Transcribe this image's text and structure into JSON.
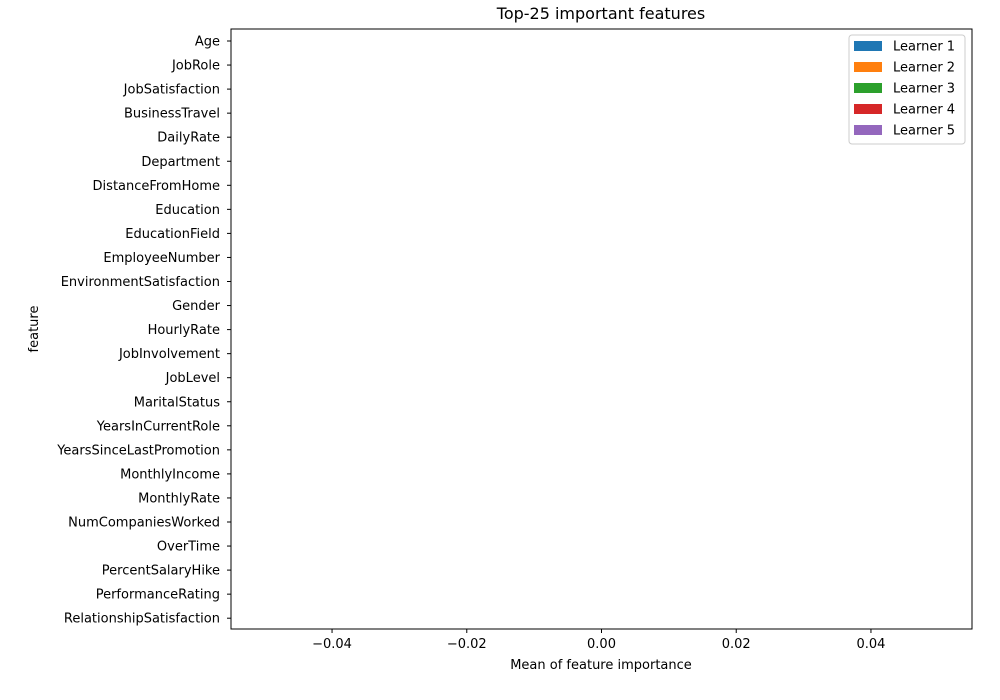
{
  "chart_data": {
    "type": "bar",
    "orientation": "horizontal",
    "title": "Top-25 important features",
    "xlabel": "Mean of feature importance",
    "ylabel": "feature",
    "xlim": [
      -0.055,
      0.055
    ],
    "xticks": [
      -0.04,
      -0.02,
      0.0,
      0.02,
      0.04
    ],
    "xtick_labels": [
      "−0.04",
      "−0.02",
      "0.00",
      "0.02",
      "0.04"
    ],
    "grid": false,
    "legend_position": "top-right",
    "categories": [
      "Age",
      "JobRole",
      "JobSatisfaction",
      "BusinessTravel",
      "DailyRate",
      "Department",
      "DistanceFromHome",
      "Education",
      "EducationField",
      "EmployeeNumber",
      "EnvironmentSatisfaction",
      "Gender",
      "HourlyRate",
      "JobInvolvement",
      "JobLevel",
      "MaritalStatus",
      "YearsInCurrentRole",
      "YearsSinceLastPromotion",
      "MonthlyIncome",
      "MonthlyRate",
      "NumCompaniesWorked",
      "OverTime",
      "PercentSalaryHike",
      "PerformanceRating",
      "RelationshipSatisfaction"
    ],
    "series": [
      {
        "name": "Learner 1",
        "color": "#1f77b4",
        "values": [
          0,
          0,
          0,
          0,
          0,
          0,
          0,
          0,
          0,
          0,
          0,
          0,
          0,
          0,
          0,
          0,
          0,
          0,
          0,
          0,
          0,
          0,
          0,
          0,
          0
        ]
      },
      {
        "name": "Learner 2",
        "color": "#ff7f0e",
        "values": [
          0,
          0,
          0,
          0,
          0,
          0,
          0,
          0,
          0,
          0,
          0,
          0,
          0,
          0,
          0,
          0,
          0,
          0,
          0,
          0,
          0,
          0,
          0,
          0,
          0
        ]
      },
      {
        "name": "Learner 3",
        "color": "#2ca02c",
        "values": [
          0,
          0,
          0,
          0,
          0,
          0,
          0,
          0,
          0,
          0,
          0,
          0,
          0,
          0,
          0,
          0,
          0,
          0,
          0,
          0,
          0,
          0,
          0,
          0,
          0
        ]
      },
      {
        "name": "Learner 4",
        "color": "#d62728",
        "values": [
          0,
          0,
          0,
          0,
          0,
          0,
          0,
          0,
          0,
          0,
          0,
          0,
          0,
          0,
          0,
          0,
          0,
          0,
          0,
          0,
          0,
          0,
          0,
          0,
          0
        ]
      },
      {
        "name": "Learner 5",
        "color": "#9467bd",
        "values": [
          0,
          0,
          0,
          0,
          0,
          0,
          0,
          0,
          0,
          0,
          0,
          0,
          0,
          0,
          0,
          0,
          0,
          0,
          0,
          0,
          0,
          0,
          0,
          0,
          0
        ]
      }
    ]
  }
}
